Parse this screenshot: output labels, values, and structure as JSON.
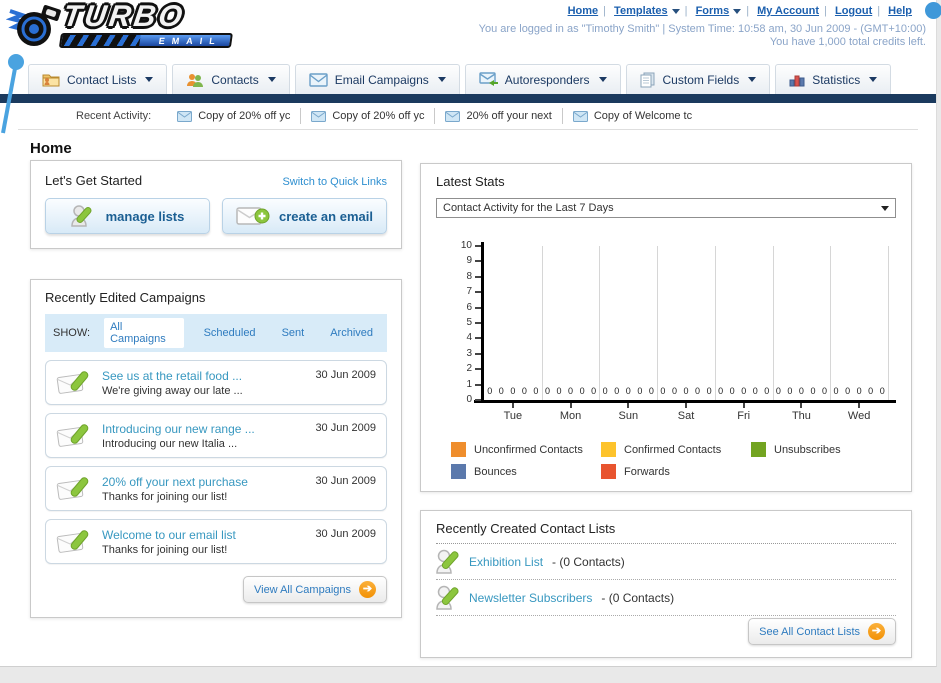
{
  "header": {
    "logo_line1": "TURBO",
    "logo_line2": "EMAIL",
    "nav_links": [
      "Home",
      "Templates",
      "Forms",
      "My Account",
      "Logout",
      "Help"
    ],
    "login_info": "You are logged in as \"Timothy Smith\" | System Time: 10:58 am, 30 Jun 2009 - (GMT+10:00)",
    "credits_info": "You have 1,000 total credits left."
  },
  "nav_tabs": [
    {
      "label": "Contact Lists"
    },
    {
      "label": "Contacts"
    },
    {
      "label": "Email Campaigns"
    },
    {
      "label": "Autoresponders"
    },
    {
      "label": "Custom Fields"
    },
    {
      "label": "Statistics"
    }
  ],
  "recent_activity": {
    "label": "Recent Activity:",
    "items": [
      "Copy of 20% off yc",
      "Copy of 20% off yc",
      "20% off your next",
      "Copy of Welcome tc"
    ]
  },
  "page_title": "Home",
  "get_started": {
    "title": "Let's Get Started",
    "switch_link": "Switch to Quick Links",
    "manage_lists_label": "manage lists",
    "create_email_label": "create an email"
  },
  "campaigns": {
    "title": "Recently Edited Campaigns",
    "show_label": "SHOW:",
    "filters": [
      "All Campaigns",
      "Scheduled",
      "Sent",
      "Archived"
    ],
    "active_filter": "All Campaigns",
    "items": [
      {
        "title": "See us at the retail food ...",
        "subtitle": "We're giving away our late ...",
        "date": "30 Jun 2009"
      },
      {
        "title": "Introducing our new range ...",
        "subtitle": "Introducing our new Italia ...",
        "date": "30 Jun 2009"
      },
      {
        "title": "20% off your next purchase",
        "subtitle": "Thanks for joining our list!",
        "date": "30 Jun 2009"
      },
      {
        "title": "Welcome to our email list",
        "subtitle": "Thanks for joining our list!",
        "date": "30 Jun 2009"
      }
    ],
    "view_all_label": "View All Campaigns"
  },
  "stats": {
    "title": "Latest Stats",
    "dropdown_value": "Contact Activity for the Last 7 Days"
  },
  "chart_data": {
    "type": "bar",
    "title": "Contact Activity for the Last 7 Days",
    "categories": [
      "Tue",
      "Mon",
      "Sun",
      "Sat",
      "Fri",
      "Thu",
      "Wed"
    ],
    "series": [
      {
        "name": "Unconfirmed Contacts",
        "color": "#ef8e2d",
        "values": [
          0,
          0,
          0,
          0,
          0,
          0,
          0
        ]
      },
      {
        "name": "Confirmed Contacts",
        "color": "#fdc32c",
        "values": [
          0,
          0,
          0,
          0,
          0,
          0,
          0
        ]
      },
      {
        "name": "Unsubscribes",
        "color": "#73a421",
        "values": [
          0,
          0,
          0,
          0,
          0,
          0,
          0
        ]
      },
      {
        "name": "Bounces",
        "color": "#5b79ac",
        "values": [
          0,
          0,
          0,
          0,
          0,
          0,
          0
        ]
      },
      {
        "name": "Forwards",
        "color": "#e8542f",
        "values": [
          0,
          0,
          0,
          0,
          0,
          0,
          0
        ]
      }
    ],
    "ylim": [
      0,
      10
    ],
    "yticks": [
      0,
      1,
      2,
      3,
      4,
      5,
      6,
      7,
      8,
      9,
      10
    ],
    "grid": true,
    "legend_position": "bottom"
  },
  "contact_lists": {
    "title": "Recently Created Contact Lists",
    "items": [
      {
        "name": "Exhibition List",
        "count": "- (0 Contacts)"
      },
      {
        "name": "Newsletter Subscribers",
        "count": "- (0 Contacts)"
      }
    ],
    "see_all_label": "See All Contact Lists"
  },
  "colors": {
    "navy_bar": "#1b3a5e",
    "link_blue": "#1b5fae",
    "teal_link": "#3898c0",
    "accent_orange": "#f5a60a"
  }
}
